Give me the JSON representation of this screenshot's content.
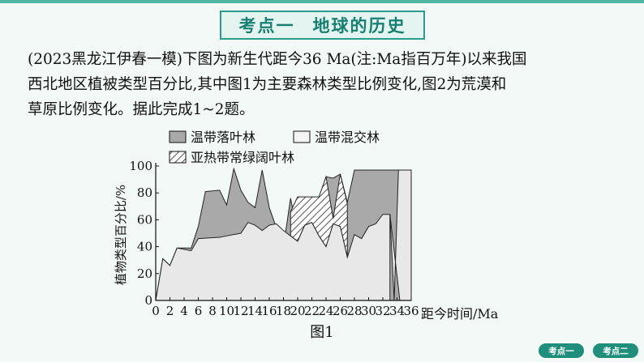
{
  "header": {
    "title_part1": "考点一",
    "title_part2": "地球的历史"
  },
  "question": {
    "line1": "(2023黑龙江伊春一模)下图为新生代距今36 Ma(注:Ma指百万年)以来我国",
    "line2": "西北地区植被类型百分比,其中图1为主要森林类型比例变化,图2为荒漠和",
    "line3": "草原比例变化。据此完成1~2题。"
  },
  "chart_data": {
    "type": "area",
    "title": "图1",
    "xlabel": "距今时间/Ma",
    "ylabel": "植物类型百分比/%",
    "xlim": [
      0,
      36
    ],
    "ylim": [
      0,
      100
    ],
    "xticks": [
      0,
      4,
      8,
      12,
      16,
      20,
      24,
      28,
      32,
      36
    ],
    "x_tick_labels": [
      "0",
      "2",
      "4",
      "6",
      "8",
      "10",
      "12",
      "14",
      "16",
      "18",
      "20",
      "22",
      "24",
      "26",
      "28",
      "30",
      "32",
      "34",
      "36"
    ],
    "x_tick_values": [
      0,
      2,
      4,
      6,
      8,
      10,
      12,
      14,
      16,
      18,
      20,
      22,
      24,
      26,
      28,
      30,
      32,
      34,
      36
    ],
    "y_tick_labels": [
      "0",
      "20",
      "40",
      "60",
      "80",
      "100"
    ],
    "y_tick_values": [
      0,
      20,
      40,
      60,
      80,
      100
    ],
    "grid": false,
    "legend_position": "top",
    "legend": [
      {
        "label": "温带落叶林",
        "swatch": "gray"
      },
      {
        "label": "温带混交林",
        "swatch": "light"
      },
      {
        "label": "亚热带常绿阔叶林",
        "swatch": "hatch"
      }
    ],
    "colors": {
      "deciduous": "#a9a9a9",
      "mixed": "#e8e8e8",
      "outline": "#222222"
    },
    "series": [
      {
        "name": "温带混交林",
        "x": [
          0,
          1,
          2,
          3,
          5,
          6,
          9,
          10,
          11,
          12,
          13,
          14,
          15,
          16,
          17,
          18,
          19,
          20,
          21,
          22,
          23,
          24,
          25,
          26,
          27,
          28,
          29,
          30,
          31,
          32,
          33
        ],
        "values": [
          0,
          31,
          26,
          39,
          37,
          46,
          47,
          48,
          49,
          50,
          58,
          56,
          52,
          56,
          57,
          52,
          48,
          44,
          56,
          58,
          48,
          40,
          57,
          55,
          32,
          49,
          46,
          55,
          57,
          64,
          64
        ]
      },
      {
        "name": "温带落叶林",
        "x": [
          0,
          1,
          2,
          3,
          5,
          6,
          7,
          9,
          10,
          11,
          12,
          13,
          14,
          15,
          16,
          17,
          18,
          19,
          20,
          21,
          22,
          23,
          24,
          25,
          26,
          27,
          28,
          29,
          30,
          31,
          32,
          33,
          34,
          35,
          36
        ],
        "values": [
          0,
          31,
          26,
          39,
          39,
          55,
          81,
          82,
          71,
          98,
          82,
          73,
          69,
          97,
          69,
          54,
          40,
          76,
          50,
          60,
          52,
          72,
          92,
          91,
          94,
          73,
          97,
          97,
          97,
          97,
          97,
          97,
          97,
          97,
          97
        ]
      },
      {
        "name": "亚热带常绿阔叶林",
        "x": [
          19,
          20,
          21,
          22,
          23,
          24,
          25,
          26,
          27
        ],
        "values": [
          66,
          77,
          77,
          77,
          77,
          92,
          61,
          94,
          72
        ]
      }
    ]
  },
  "nav": {
    "btn1": "考点一",
    "btn2": "考点二"
  }
}
